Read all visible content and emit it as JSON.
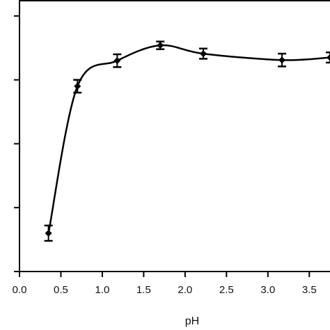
{
  "chart_data": {
    "type": "line",
    "title": "",
    "xlabel": "pH",
    "ylabel": "",
    "xlim": [
      0.0,
      3.75
    ],
    "ylim": [
      0,
      4.25
    ],
    "x_ticks": [
      0.0,
      0.5,
      1.0,
      1.5,
      2.0,
      2.5,
      3.0,
      3.5
    ],
    "x_tick_labels": [
      "0.0",
      "0.5",
      "1.0",
      "1.5",
      "2.0",
      "2.5",
      "3.0",
      "3.5"
    ],
    "y_ticks": [
      0,
      1,
      2,
      3,
      4
    ],
    "y_tick_labels_visible": false,
    "grid": false,
    "legend": "none",
    "series": [
      {
        "marker": "diamond",
        "color": "#000000",
        "x": [
          0.35,
          0.7,
          1.18,
          1.7,
          2.22,
          3.17,
          3.75
        ],
        "y": [
          0.6,
          2.9,
          3.3,
          3.54,
          3.41,
          3.31,
          3.35
        ],
        "error": [
          0.12,
          0.1,
          0.1,
          0.06,
          0.08,
          0.1,
          0.08
        ]
      }
    ]
  }
}
